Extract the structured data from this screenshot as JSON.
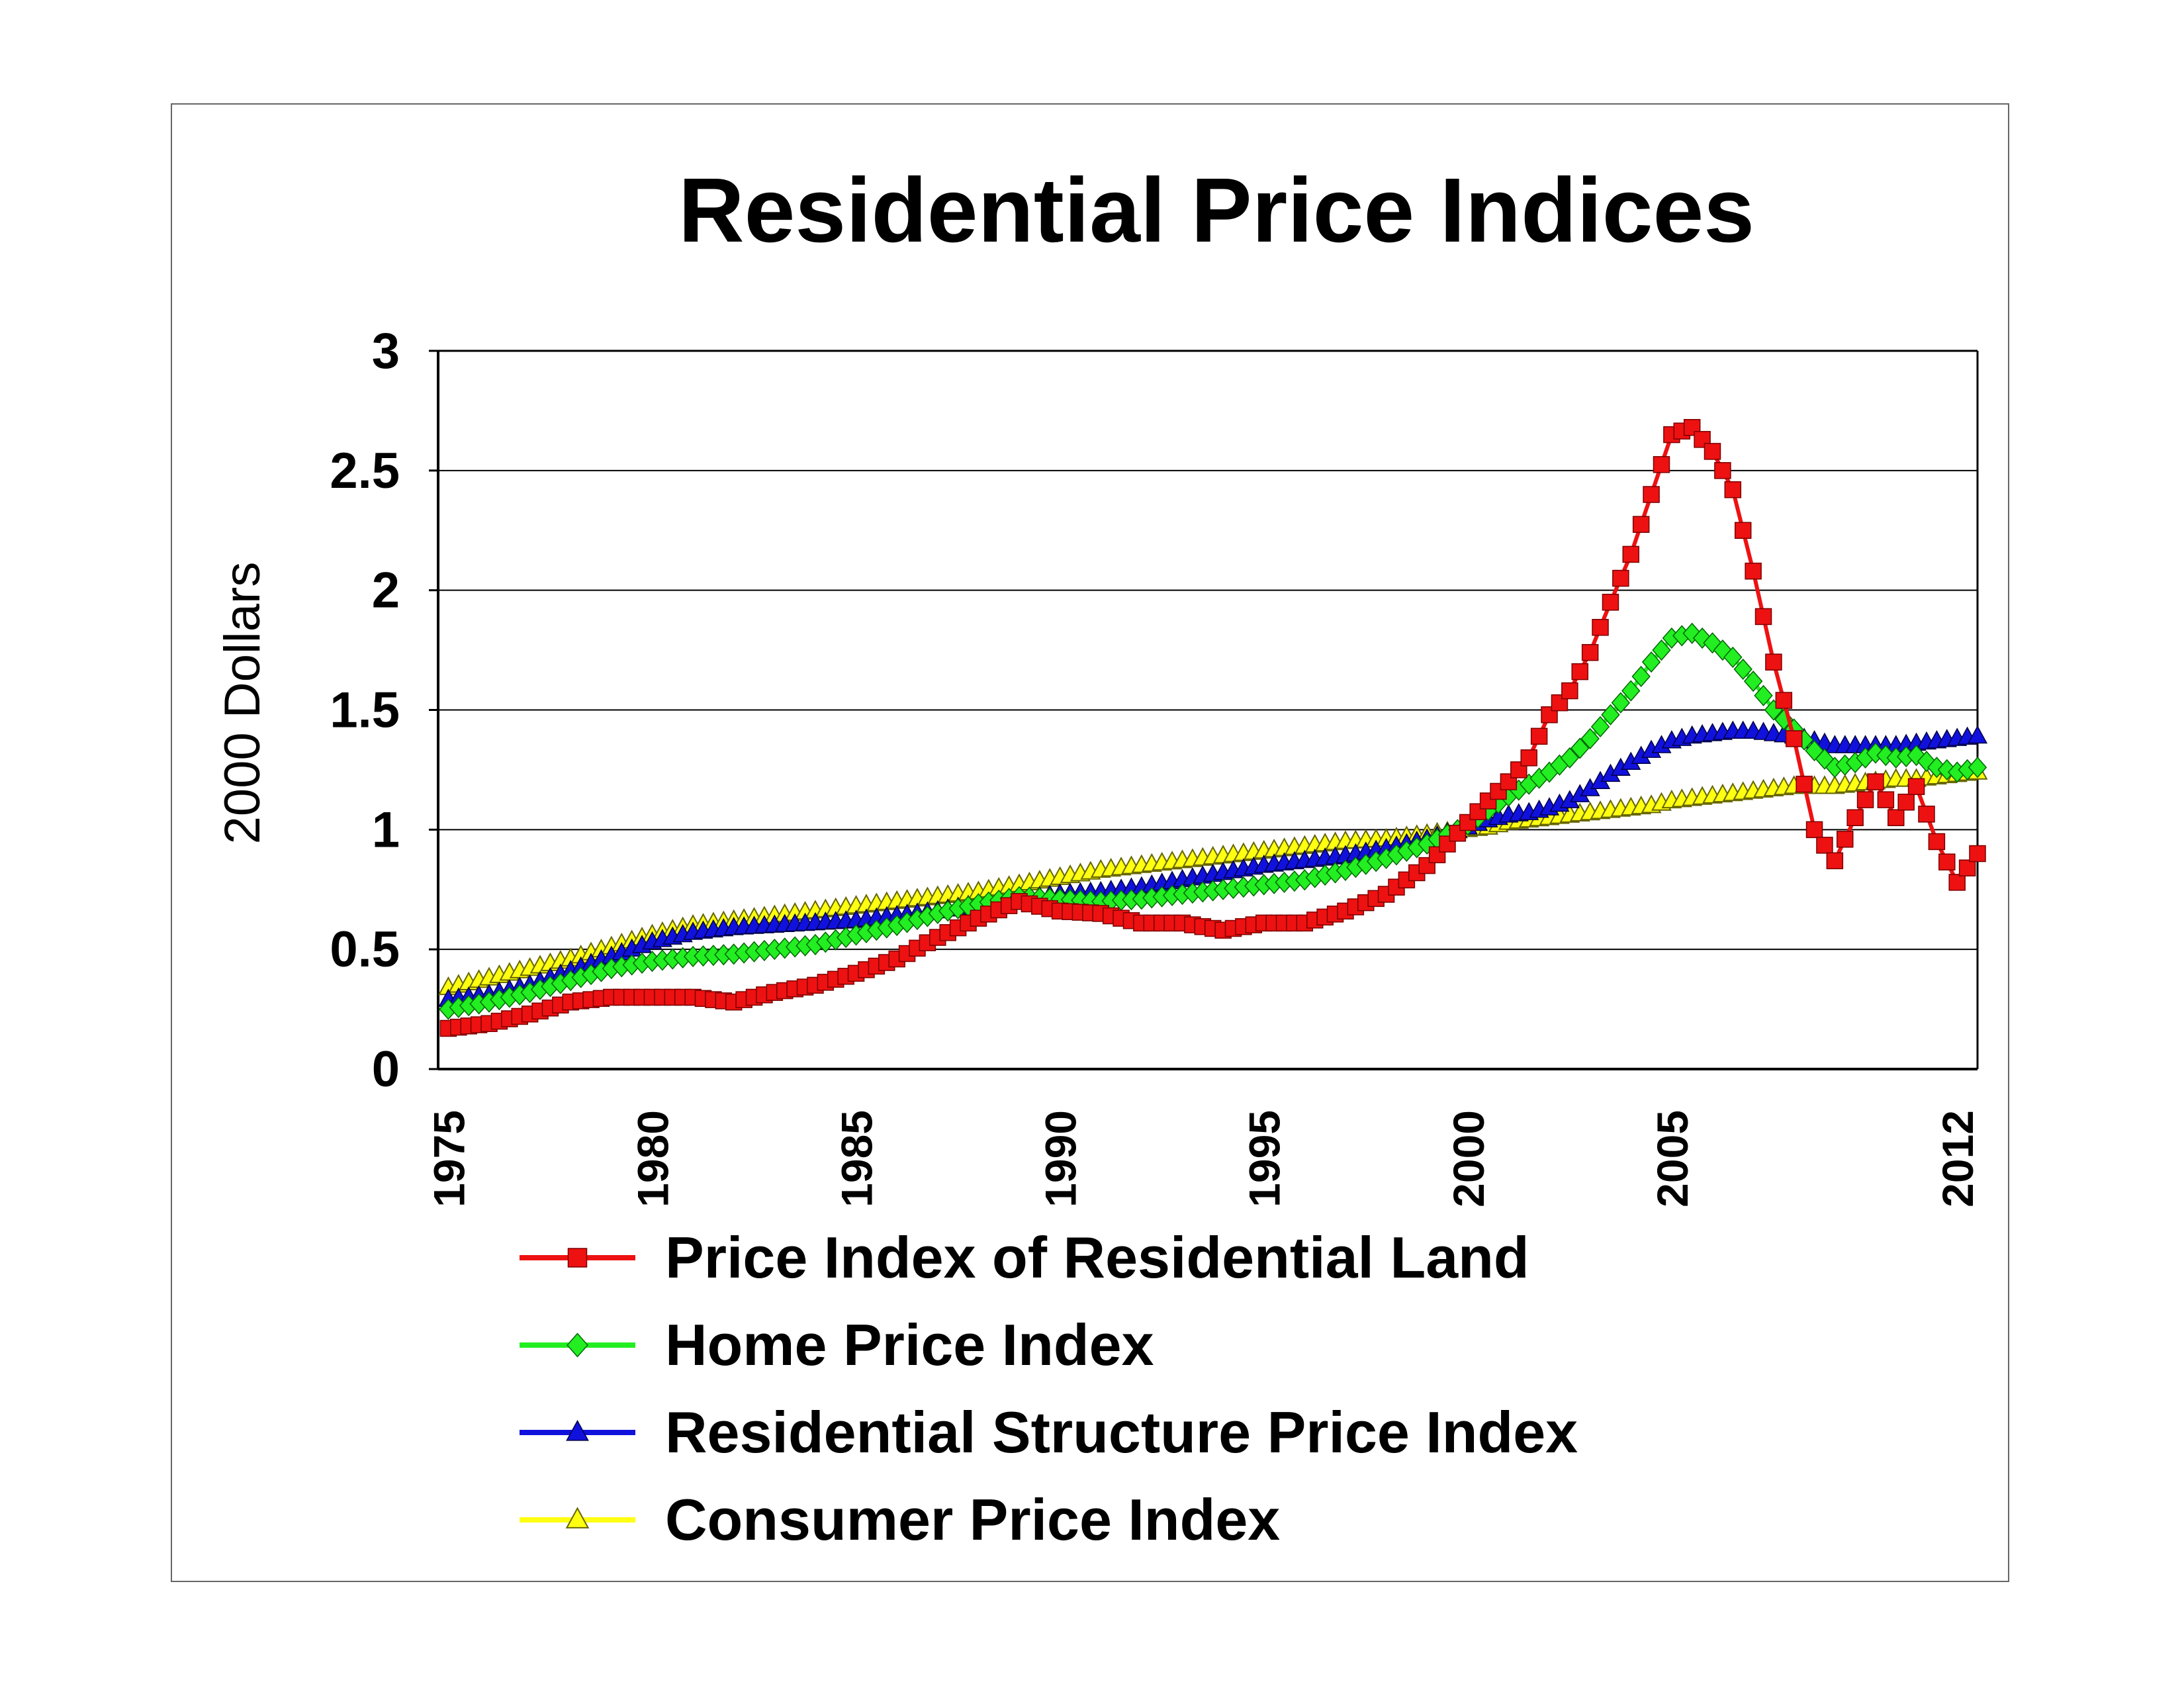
{
  "chart_data": {
    "type": "line",
    "title": "Residential Price Indices",
    "xlabel": "",
    "ylabel": "2000 Dollars",
    "xlim": [
      1974.75,
      2012.5
    ],
    "ylim": [
      0,
      3
    ],
    "y_ticks": [
      "0",
      "0.5",
      "1",
      "1.5",
      "2",
      "2.5",
      "3"
    ],
    "x_ticks": [
      "1975",
      "1980",
      "1985",
      "1990",
      "1995",
      "2000",
      "2005",
      "2012"
    ],
    "x_tick_values": [
      1975,
      1980,
      1985,
      1990,
      1995,
      2000,
      2005,
      2012
    ],
    "grid": "horizontal",
    "legend_position": "bottom",
    "series": [
      {
        "name": "Price Index of Residential Land",
        "color": "#ee1111",
        "marker": "square",
        "x": [
          1975,
          1976,
          1977,
          1978,
          1979,
          1980,
          1981,
          1982,
          1983,
          1984,
          1985,
          1986,
          1987,
          1988,
          1989,
          1990,
          1991,
          1992,
          1993,
          1994,
          1995,
          1996,
          1997,
          1998,
          1999,
          2000,
          2000.5,
          2001,
          2001.5,
          2002,
          2002.5,
          2003,
          2003.5,
          2004,
          2004.5,
          2005,
          2005.5,
          2006,
          2006.5,
          2007,
          2007.5,
          2008,
          2008.5,
          2009,
          2009.5,
          2010,
          2010.5,
          2011,
          2011.5,
          2012,
          2012.5
        ],
        "y": [
          0.17,
          0.19,
          0.23,
          0.28,
          0.3,
          0.3,
          0.3,
          0.28,
          0.32,
          0.35,
          0.4,
          0.46,
          0.55,
          0.63,
          0.7,
          0.66,
          0.65,
          0.61,
          0.61,
          0.58,
          0.61,
          0.61,
          0.66,
          0.73,
          0.85,
          1.03,
          1.12,
          1.2,
          1.3,
          1.48,
          1.58,
          1.74,
          1.95,
          2.15,
          2.4,
          2.65,
          2.68,
          2.58,
          2.42,
          2.08,
          1.7,
          1.38,
          1.0,
          0.87,
          1.05,
          1.2,
          1.05,
          1.18,
          0.95,
          0.78,
          0.9
        ]
      },
      {
        "name": "Home Price Index",
        "color": "#22ee22",
        "marker": "diamond",
        "x": [
          1975,
          1976,
          1977,
          1978,
          1979,
          1980,
          1981,
          1982,
          1983,
          1984,
          1985,
          1986,
          1987,
          1988,
          1989,
          1990,
          1991,
          1992,
          1993,
          1994,
          1995,
          1996,
          1997,
          1998,
          1999,
          2000,
          2000.5,
          2001,
          2001.5,
          2002,
          2002.5,
          2003,
          2003.5,
          2004,
          2004.5,
          2005,
          2005.5,
          2006,
          2006.5,
          2007,
          2007.5,
          2008,
          2008.5,
          2009,
          2009.5,
          2010,
          2010.5,
          2011,
          2011.5,
          2012,
          2012.5
        ],
        "y": [
          0.25,
          0.28,
          0.32,
          0.37,
          0.42,
          0.45,
          0.47,
          0.48,
          0.5,
          0.52,
          0.56,
          0.6,
          0.65,
          0.69,
          0.72,
          0.71,
          0.7,
          0.71,
          0.73,
          0.75,
          0.77,
          0.79,
          0.83,
          0.88,
          0.94,
          1.02,
          1.08,
          1.14,
          1.19,
          1.24,
          1.3,
          1.38,
          1.48,
          1.58,
          1.7,
          1.8,
          1.82,
          1.78,
          1.72,
          1.62,
          1.5,
          1.42,
          1.33,
          1.26,
          1.28,
          1.32,
          1.3,
          1.31,
          1.26,
          1.24,
          1.26
        ]
      },
      {
        "name": "Residential Structure Price Index",
        "color": "#1111dd",
        "marker": "triangle",
        "x": [
          1975,
          1976,
          1977,
          1978,
          1979,
          1980,
          1981,
          1982,
          1983,
          1984,
          1985,
          1986,
          1987,
          1988,
          1989,
          1990,
          1991,
          1992,
          1993,
          1994,
          1995,
          1996,
          1997,
          1998,
          1999,
          2000,
          2000.5,
          2001,
          2001.5,
          2002,
          2002.5,
          2003,
          2003.5,
          2004,
          2004.5,
          2005,
          2005.5,
          2006,
          2006.5,
          2007,
          2007.5,
          2008,
          2008.5,
          2009,
          2009.5,
          2010,
          2010.5,
          2011,
          2011.5,
          2012,
          2012.5
        ],
        "y": [
          0.29,
          0.31,
          0.35,
          0.41,
          0.47,
          0.53,
          0.57,
          0.59,
          0.6,
          0.61,
          0.62,
          0.64,
          0.66,
          0.69,
          0.71,
          0.73,
          0.74,
          0.76,
          0.79,
          0.82,
          0.85,
          0.87,
          0.89,
          0.92,
          0.96,
          1.01,
          1.04,
          1.06,
          1.07,
          1.09,
          1.12,
          1.17,
          1.23,
          1.28,
          1.33,
          1.37,
          1.39,
          1.4,
          1.41,
          1.41,
          1.4,
          1.39,
          1.37,
          1.35,
          1.35,
          1.35,
          1.35,
          1.36,
          1.37,
          1.38,
          1.39
        ]
      },
      {
        "name": "Consumer Price Index",
        "color": "#ffff11",
        "marker": "triangle-open",
        "x": [
          1975,
          1976,
          1977,
          1978,
          1979,
          1980,
          1981,
          1982,
          1983,
          1984,
          1985,
          1986,
          1987,
          1988,
          1989,
          1990,
          1991,
          1992,
          1993,
          1994,
          1995,
          1996,
          1997,
          1998,
          1999,
          2000,
          2000.5,
          2001,
          2001.5,
          2002,
          2002.5,
          2003,
          2003.5,
          2004,
          2004.5,
          2005,
          2005.5,
          2006,
          2006.5,
          2007,
          2007.5,
          2008,
          2008.5,
          2009,
          2009.5,
          2010,
          2010.5,
          2011,
          2011.5,
          2012,
          2012.5
        ],
        "y": [
          0.34,
          0.38,
          0.42,
          0.46,
          0.51,
          0.56,
          0.6,
          0.62,
          0.64,
          0.66,
          0.68,
          0.7,
          0.72,
          0.74,
          0.77,
          0.8,
          0.83,
          0.85,
          0.87,
          0.89,
          0.91,
          0.93,
          0.95,
          0.96,
          0.98,
          1.0,
          1.01,
          1.03,
          1.04,
          1.05,
          1.06,
          1.07,
          1.08,
          1.09,
          1.1,
          1.12,
          1.13,
          1.14,
          1.15,
          1.16,
          1.17,
          1.18,
          1.18,
          1.18,
          1.19,
          1.2,
          1.21,
          1.21,
          1.22,
          1.23,
          1.24
        ]
      }
    ]
  }
}
